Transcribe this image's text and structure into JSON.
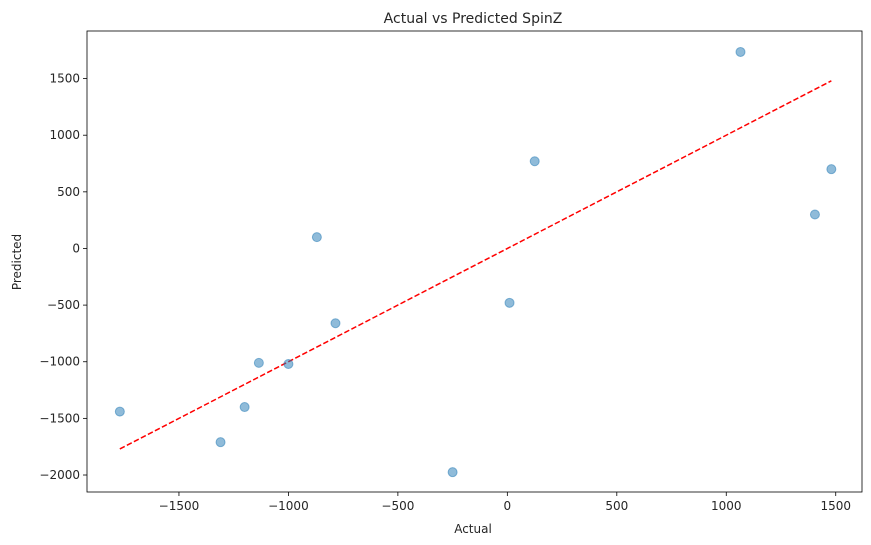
{
  "chart_data": {
    "type": "scatter",
    "title": "Actual vs Predicted SpinZ",
    "xlabel": "Actual",
    "ylabel": "Predicted",
    "xlim": [
      -1920,
      1620
    ],
    "ylim": [
      -2150,
      1920
    ],
    "x_ticks": [
      -1500,
      -1000,
      -500,
      0,
      500,
      1000,
      1500
    ],
    "x_tick_labels": [
      "−1500",
      "−1000",
      "−500",
      "0",
      "500",
      "1000",
      "1500"
    ],
    "y_ticks": [
      -2000,
      -1500,
      -1000,
      -500,
      0,
      500,
      1000,
      1500
    ],
    "y_tick_labels": [
      "−2000",
      "−1500",
      "−1000",
      "−500",
      "0",
      "500",
      "1000",
      "1500"
    ],
    "grid": false,
    "series": [
      {
        "points": [
          {
            "x": -1770,
            "y": -1440
          },
          {
            "x": -1310,
            "y": -1710
          },
          {
            "x": -1200,
            "y": -1400
          },
          {
            "x": -1135,
            "y": -1010
          },
          {
            "x": -1000,
            "y": -1020
          },
          {
            "x": -870,
            "y": 100
          },
          {
            "x": -785,
            "y": -660
          },
          {
            "x": -250,
            "y": -1975
          },
          {
            "x": 10,
            "y": -480
          },
          {
            "x": 125,
            "y": 770
          },
          {
            "x": 1065,
            "y": 1735
          },
          {
            "x": 1405,
            "y": 300
          },
          {
            "x": 1480,
            "y": 700
          }
        ],
        "color": "#1f77b4",
        "alpha": 0.5
      }
    ],
    "reference_line": {
      "from": [
        -1770,
        -1770
      ],
      "to": [
        1480,
        1480
      ],
      "color": "#ff0000",
      "style": "dashed"
    }
  }
}
